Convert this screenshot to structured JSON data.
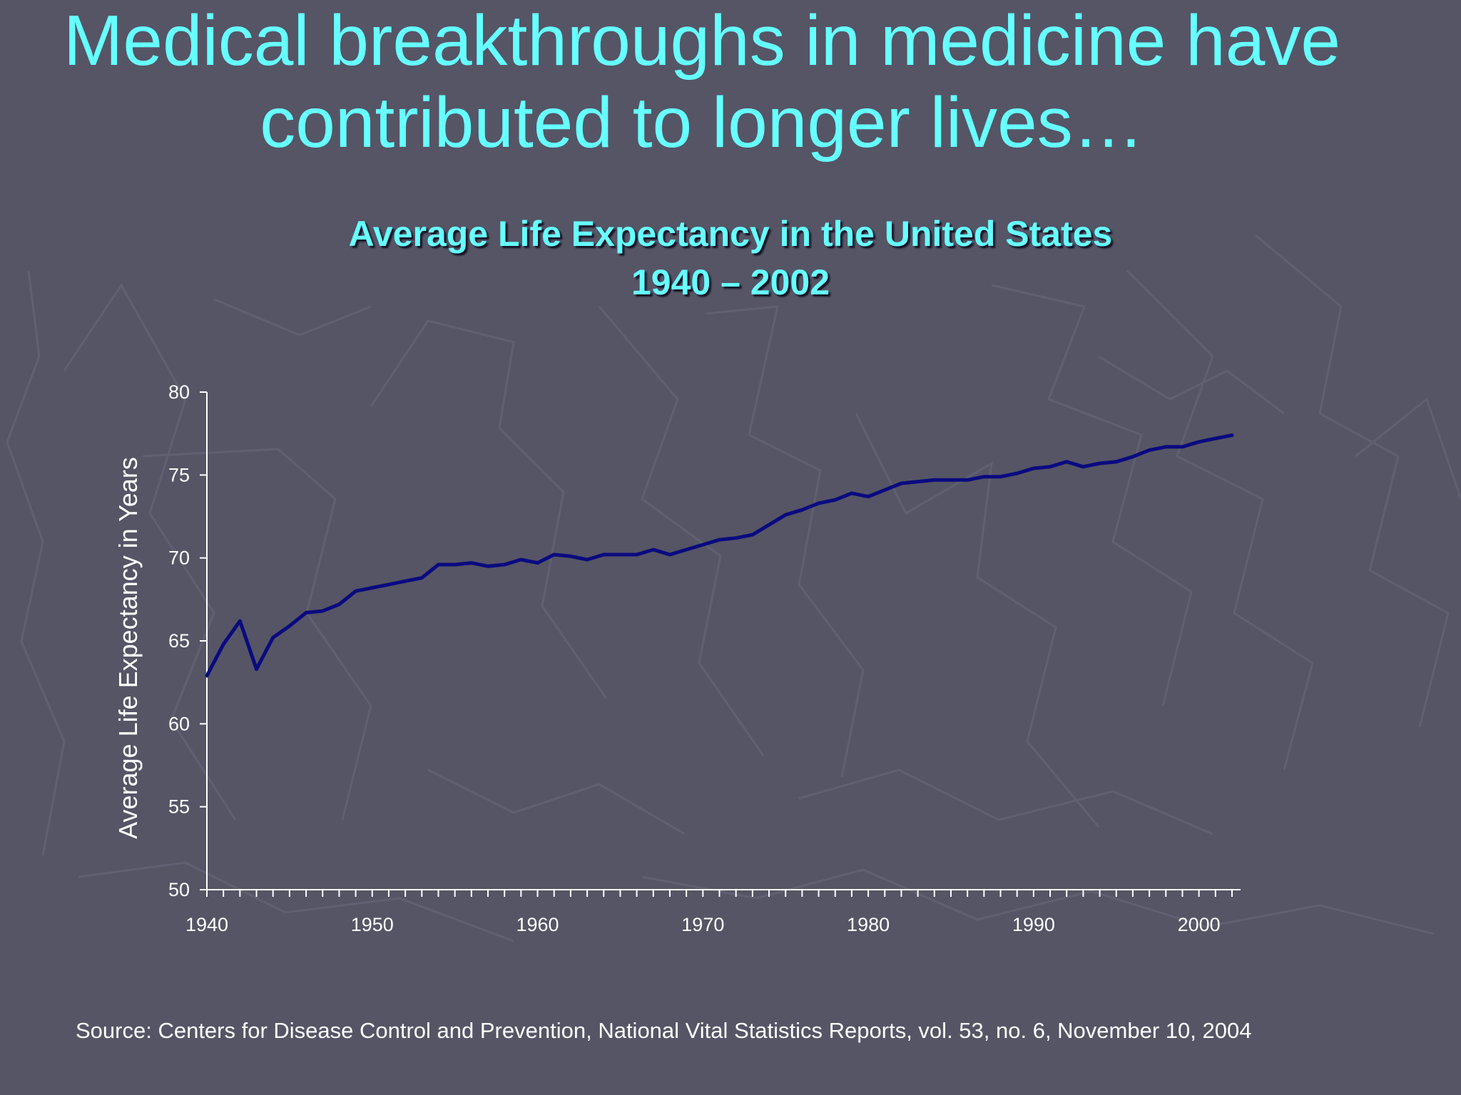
{
  "slide": {
    "title_line1": "Medical breakthroughs in medicine have",
    "title_line2": "contributed to longer lives…",
    "source": "Source: Centers for Disease Control and Prevention, National Vital Statistics Reports, vol. 53, no. 6, November 10, 2004"
  },
  "colors": {
    "background": "#555566",
    "title": "#66ffff",
    "line": "#0a0a80",
    "axis": "#ffffff"
  },
  "chart_data": {
    "type": "line",
    "title": "Average Life Expectancy in the United States",
    "subtitle": "1940 – 2002",
    "xlabel": "",
    "ylabel": "Average Life Expectancy in Years",
    "xlim": [
      1940,
      2002
    ],
    "ylim": [
      50,
      80
    ],
    "x_ticks": [
      1940,
      1950,
      1960,
      1970,
      1980,
      1990,
      2000
    ],
    "y_ticks": [
      50,
      55,
      60,
      65,
      70,
      75,
      80
    ],
    "grid": false,
    "legend": "none",
    "series": [
      {
        "x": [
          1940,
          1941,
          1942,
          1943,
          1944,
          1945,
          1946,
          1947,
          1948,
          1949,
          1950,
          1951,
          1952,
          1953,
          1954,
          1955,
          1956,
          1957,
          1958,
          1959,
          1960,
          1961,
          1962,
          1963,
          1964,
          1965,
          1966,
          1967,
          1968,
          1969,
          1970,
          1971,
          1972,
          1973,
          1974,
          1975,
          1976,
          1977,
          1978,
          1979,
          1980,
          1981,
          1982,
          1983,
          1984,
          1985,
          1986,
          1987,
          1988,
          1989,
          1990,
          1991,
          1992,
          1993,
          1994,
          1995,
          1996,
          1997,
          1998,
          1999,
          2000,
          2001,
          2002
        ],
        "values": [
          62.9,
          64.8,
          66.2,
          63.3,
          65.2,
          65.9,
          66.7,
          66.8,
          67.2,
          68.0,
          68.2,
          68.4,
          68.6,
          68.8,
          69.6,
          69.6,
          69.7,
          69.5,
          69.6,
          69.9,
          69.7,
          70.2,
          70.1,
          69.9,
          70.2,
          70.2,
          70.2,
          70.5,
          70.2,
          70.5,
          70.8,
          71.1,
          71.2,
          71.4,
          72.0,
          72.6,
          72.9,
          73.3,
          73.5,
          73.9,
          73.7,
          74.1,
          74.5,
          74.6,
          74.7,
          74.7,
          74.7,
          74.9,
          74.9,
          75.1,
          75.4,
          75.5,
          75.8,
          75.5,
          75.7,
          75.8,
          76.1,
          76.5,
          76.7,
          76.7,
          77.0,
          77.2,
          77.4
        ]
      }
    ]
  }
}
